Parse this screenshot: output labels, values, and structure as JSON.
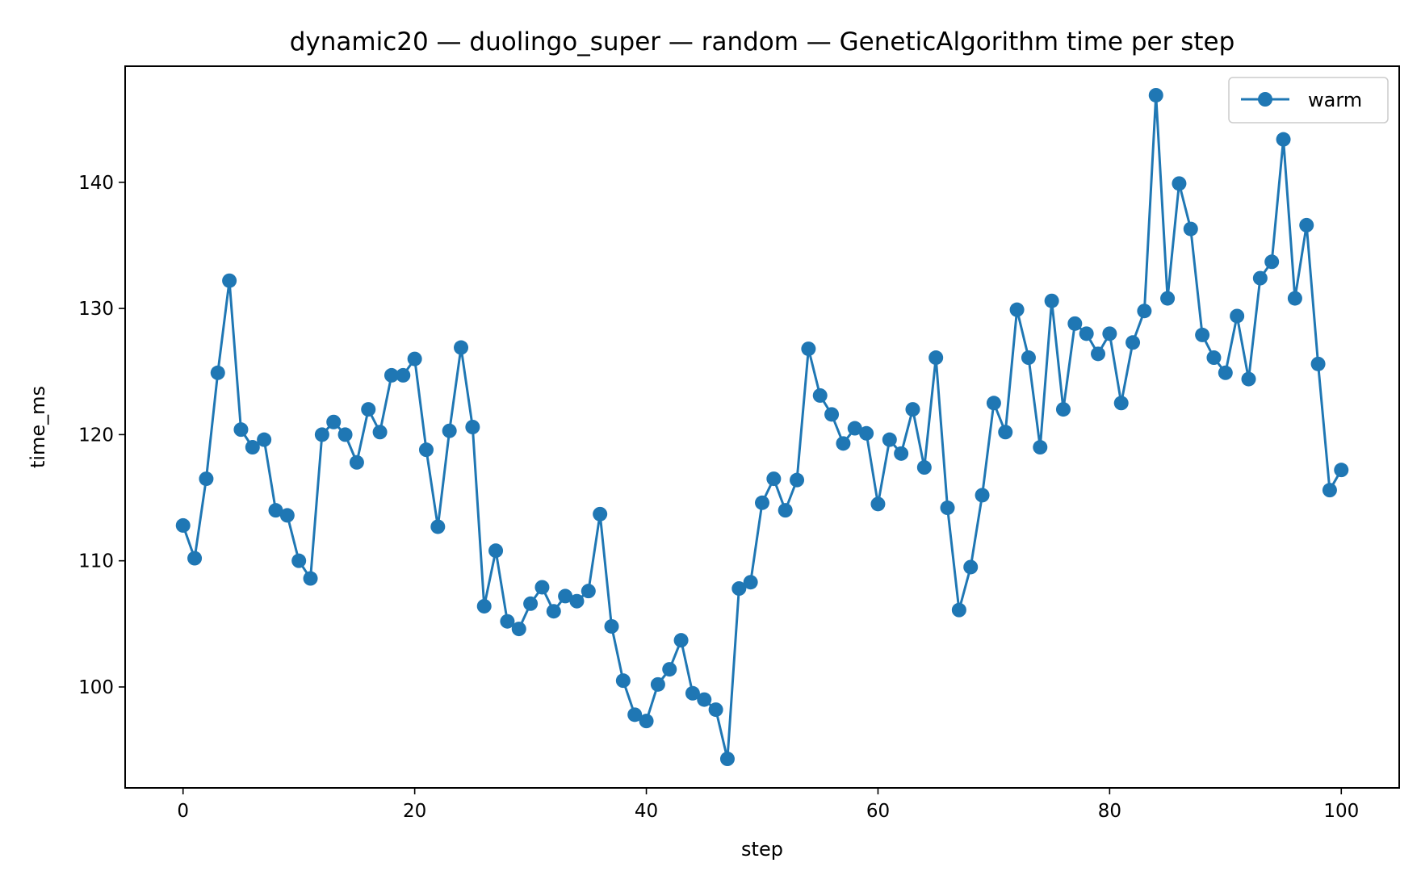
{
  "chart_data": {
    "type": "line",
    "title": "dynamic20 — duolingo_super — random — GeneticAlgorithm time per step",
    "xlabel": "step",
    "ylabel": "time_ms",
    "xlim": [
      -5,
      105
    ],
    "ylim": [
      92.0,
      149.2
    ],
    "xticks": [
      0,
      20,
      40,
      60,
      80,
      100
    ],
    "yticks": [
      100,
      110,
      120,
      130,
      140
    ],
    "grid": false,
    "legend_position": "top-right",
    "series": [
      {
        "name": "warm",
        "color": "#1f77b4",
        "marker": "circle",
        "x": [
          0,
          1,
          2,
          3,
          4,
          5,
          6,
          7,
          8,
          9,
          10,
          11,
          12,
          13,
          14,
          15,
          16,
          17,
          18,
          19,
          20,
          21,
          22,
          23,
          24,
          25,
          26,
          27,
          28,
          29,
          30,
          31,
          32,
          33,
          34,
          35,
          36,
          37,
          38,
          39,
          40,
          41,
          42,
          43,
          44,
          45,
          46,
          47,
          48,
          49,
          50,
          51,
          52,
          53,
          54,
          55,
          56,
          57,
          58,
          59,
          60,
          61,
          62,
          63,
          64,
          65,
          66,
          67,
          68,
          69,
          70,
          71,
          72,
          73,
          74,
          75,
          76,
          77,
          78,
          79,
          80,
          81,
          82,
          83,
          84,
          85,
          86,
          87,
          88,
          89,
          90,
          91,
          92,
          93,
          94,
          95,
          96,
          97,
          98,
          99,
          100
        ],
        "values": [
          112.8,
          110.2,
          116.5,
          124.9,
          132.2,
          120.4,
          119.0,
          119.6,
          114.0,
          113.6,
          110.0,
          108.6,
          120.0,
          121.0,
          120.0,
          117.8,
          122.0,
          120.2,
          124.7,
          124.7,
          126.0,
          118.8,
          112.7,
          120.3,
          126.9,
          120.6,
          106.4,
          110.8,
          105.2,
          104.6,
          106.6,
          107.9,
          106.0,
          107.2,
          106.8,
          107.6,
          113.7,
          104.8,
          100.5,
          97.8,
          97.3,
          100.2,
          101.4,
          103.7,
          99.5,
          99.0,
          98.2,
          94.3,
          107.8,
          108.3,
          114.6,
          116.5,
          114.0,
          116.4,
          126.8,
          123.1,
          121.6,
          119.3,
          120.5,
          120.1,
          114.5,
          119.6,
          118.5,
          122.0,
          117.4,
          126.1,
          114.2,
          106.1,
          109.5,
          115.2,
          122.5,
          120.2,
          129.9,
          126.1,
          119.0,
          130.6,
          122.0,
          128.8,
          128.0,
          126.4,
          128.0,
          122.5,
          127.3,
          129.8,
          146.9,
          130.8,
          139.9,
          136.3,
          127.9,
          126.1,
          124.9,
          129.4,
          124.4,
          132.4,
          133.7,
          143.4,
          130.8,
          136.6,
          125.6,
          115.6,
          117.2
        ]
      }
    ]
  }
}
